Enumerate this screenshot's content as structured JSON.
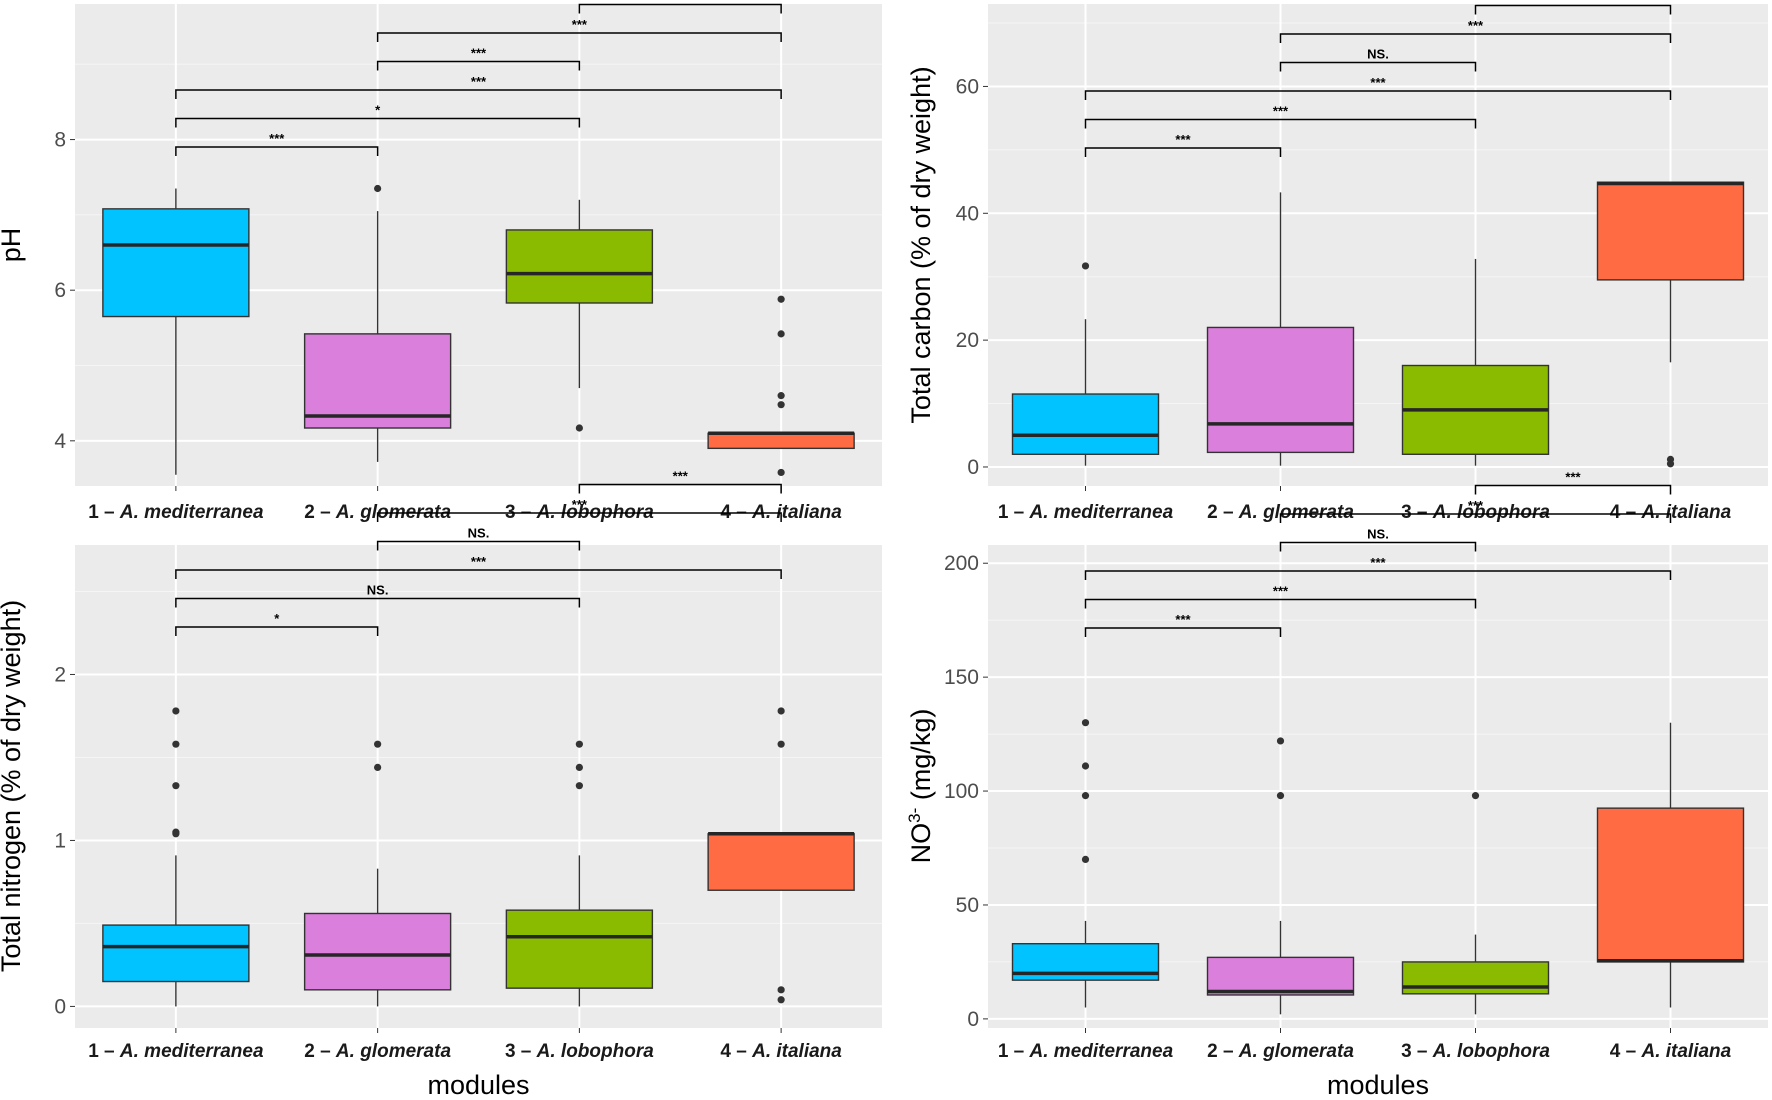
{
  "chart_data": [
    {
      "type": "boxplot",
      "panel": "top-left",
      "ylabel": "pH",
      "xlabel": "",
      "ylim": [
        3.4,
        9.8
      ],
      "yticks": [
        4,
        6,
        8
      ],
      "yticklabels": [
        "4",
        "6",
        "8"
      ],
      "groups": [
        {
          "num": "1 – ",
          "species": "A. mediterranea",
          "color": "#00c3ff",
          "q1": 5.65,
          "median": 6.6,
          "q3": 7.08,
          "whisker_low": 3.55,
          "whisker_high": 7.35,
          "outliers": []
        },
        {
          "num": "2 – ",
          "species": "A. glomerata",
          "color": "#da7fdb",
          "q1": 4.17,
          "median": 4.33,
          "q3": 5.42,
          "whisker_low": 3.72,
          "whisker_high": 7.05,
          "outliers": [
            7.35
          ]
        },
        {
          "num": "3 – ",
          "species": "A. lobophora",
          "color": "#8abb00",
          "q1": 5.83,
          "median": 6.22,
          "q3": 6.8,
          "whisker_low": 4.7,
          "whisker_high": 7.2,
          "outliers": [
            4.17
          ]
        },
        {
          "num": "4 – ",
          "species": "A. italiana",
          "color": "#ff6c43",
          "q1": 3.9,
          "median": 4.1,
          "q3": 4.1,
          "whisker_low": 3.9,
          "whisker_high": 4.1,
          "outliers": [
            5.88,
            5.42,
            4.6,
            4.48,
            3.58
          ]
        }
      ],
      "brackets": [
        {
          "from": 1,
          "to": 2,
          "label": "***"
        },
        {
          "from": 1,
          "to": 3,
          "label": "*"
        },
        {
          "from": 1,
          "to": 4,
          "label": "***"
        },
        {
          "from": 2,
          "to": 3,
          "label": "***"
        },
        {
          "from": 2,
          "to": 4,
          "label": "***"
        },
        {
          "from": 3,
          "to": 4,
          "label": "***"
        }
      ]
    },
    {
      "type": "boxplot",
      "panel": "top-right",
      "ylabel": "Total carbon (% of dry weight)",
      "xlabel": "",
      "ylim": [
        -3,
        73
      ],
      "yticks": [
        0,
        20,
        40,
        60
      ],
      "yticklabels": [
        "0",
        "20",
        "40",
        "60"
      ],
      "groups": [
        {
          "num": "1 – ",
          "species": "A. mediterranea",
          "color": "#00c3ff",
          "q1": 2.0,
          "median": 5.0,
          "q3": 11.5,
          "whisker_low": 0.2,
          "whisker_high": 23.3,
          "outliers": [
            31.7
          ]
        },
        {
          "num": "2 – ",
          "species": "A. glomerata",
          "color": "#da7fdb",
          "q1": 2.3,
          "median": 6.8,
          "q3": 22.0,
          "whisker_low": 0.2,
          "whisker_high": 43.3,
          "outliers": []
        },
        {
          "num": "3 – ",
          "species": "A. lobophora",
          "color": "#8abb00",
          "q1": 2.0,
          "median": 9.0,
          "q3": 16.0,
          "whisker_low": 0.2,
          "whisker_high": 32.8,
          "outliers": []
        },
        {
          "num": "4 – ",
          "species": "A. italiana",
          "color": "#ff6c43",
          "q1": 29.5,
          "median": 44.7,
          "q3": 44.9,
          "whisker_low": 16.5,
          "whisker_high": 44.9,
          "outliers": [
            1.2,
            0.5
          ]
        }
      ],
      "brackets": [
        {
          "from": 1,
          "to": 2,
          "label": "***"
        },
        {
          "from": 1,
          "to": 3,
          "label": "***"
        },
        {
          "from": 1,
          "to": 4,
          "label": "***"
        },
        {
          "from": 2,
          "to": 3,
          "label": "NS."
        },
        {
          "from": 2,
          "to": 4,
          "label": "***"
        },
        {
          "from": 3,
          "to": 4,
          "label": "***"
        }
      ]
    },
    {
      "type": "boxplot",
      "panel": "bottom-left",
      "ylabel": "Total nitrogen (% of dry weight)",
      "xlabel": "modules",
      "ylim": [
        -0.13,
        2.78
      ],
      "yticks": [
        0,
        1,
        2
      ],
      "yticklabels": [
        "0",
        "1",
        "2"
      ],
      "groups": [
        {
          "num": "1 – ",
          "species": "A. mediterranea",
          "color": "#00c3ff",
          "q1": 0.15,
          "median": 0.36,
          "q3": 0.49,
          "whisker_low": 0.0,
          "whisker_high": 0.91,
          "outliers": [
            1.78,
            1.58,
            1.33,
            1.05,
            1.04
          ]
        },
        {
          "num": "2 – ",
          "species": "A. glomerata",
          "color": "#da7fdb",
          "q1": 0.1,
          "median": 0.31,
          "q3": 0.56,
          "whisker_low": 0.0,
          "whisker_high": 0.83,
          "outliers": [
            1.58,
            1.44
          ]
        },
        {
          "num": "3 – ",
          "species": "A. lobophora",
          "color": "#8abb00",
          "q1": 0.11,
          "median": 0.42,
          "q3": 0.58,
          "whisker_low": 0.0,
          "whisker_high": 0.91,
          "outliers": [
            1.58,
            1.44,
            1.33
          ]
        },
        {
          "num": "4 – ",
          "species": "A. italiana",
          "color": "#ff6c43",
          "q1": 0.7,
          "median": 1.04,
          "q3": 1.04,
          "whisker_low": 0.7,
          "whisker_high": 1.04,
          "outliers": [
            1.78,
            1.58,
            0.1,
            0.04
          ]
        }
      ],
      "brackets": [
        {
          "from": 1,
          "to": 2,
          "label": "*"
        },
        {
          "from": 1,
          "to": 3,
          "label": "NS."
        },
        {
          "from": 1,
          "to": 4,
          "label": "***"
        },
        {
          "from": 2,
          "to": 3,
          "label": "NS."
        },
        {
          "from": 2,
          "to": 4,
          "label": "***"
        },
        {
          "from": 3,
          "to": 4,
          "label": "***"
        }
      ]
    },
    {
      "type": "boxplot",
      "panel": "bottom-right",
      "ylabel": "NO",
      "ylabel_sup": "3-",
      "ylabel_suffix": " (mg/kg)",
      "xlabel": "modules",
      "ylim": [
        -4,
        208
      ],
      "yticks": [
        0,
        50,
        100,
        150,
        200
      ],
      "yticklabels": [
        "0",
        "50",
        "100",
        "150",
        "200"
      ],
      "groups": [
        {
          "num": "1 – ",
          "species": "A. mediterranea",
          "color": "#00c3ff",
          "q1": 17,
          "median": 20,
          "q3": 33,
          "whisker_low": 5,
          "whisker_high": 43,
          "outliers": [
            130,
            111,
            98,
            70
          ]
        },
        {
          "num": "2 – ",
          "species": "A. glomerata",
          "color": "#da7fdb",
          "q1": 10.5,
          "median": 12,
          "q3": 27,
          "whisker_low": 2,
          "whisker_high": 43,
          "outliers": [
            122,
            98
          ]
        },
        {
          "num": "3 – ",
          "species": "A. lobophora",
          "color": "#8abb00",
          "q1": 11,
          "median": 14,
          "q3": 25,
          "whisker_low": 2,
          "whisker_high": 37,
          "outliers": [
            98
          ]
        },
        {
          "num": "4 – ",
          "species": "A. italiana",
          "color": "#ff6c43",
          "q1": 25,
          "median": 25.5,
          "q3": 92.5,
          "whisker_low": 5,
          "whisker_high": 130,
          "outliers": []
        }
      ],
      "brackets": [
        {
          "from": 1,
          "to": 2,
          "label": "***"
        },
        {
          "from": 1,
          "to": 3,
          "label": "***"
        },
        {
          "from": 1,
          "to": 4,
          "label": "***"
        },
        {
          "from": 2,
          "to": 3,
          "label": "NS."
        },
        {
          "from": 2,
          "to": 4,
          "label": "***"
        },
        {
          "from": 3,
          "to": 4,
          "label": "***"
        }
      ]
    }
  ]
}
